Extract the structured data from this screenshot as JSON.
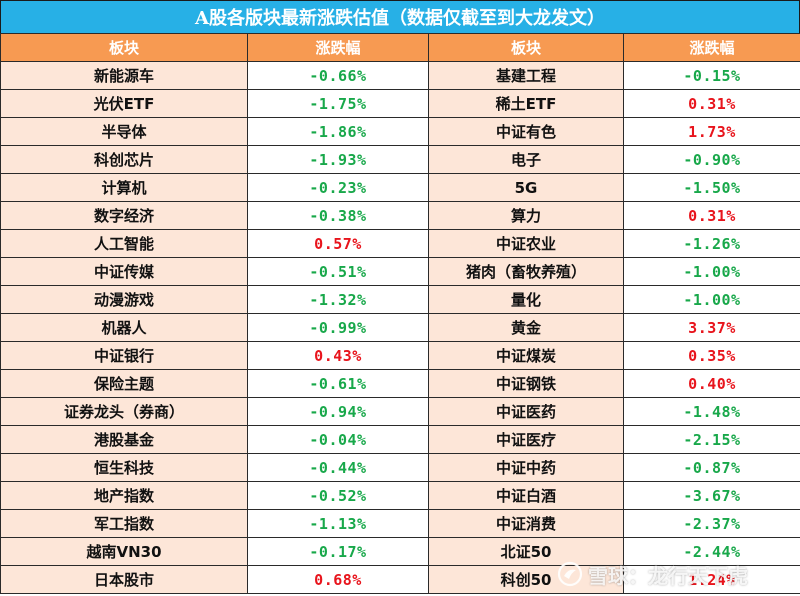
{
  "title": "A股各版块最新涨跌估值（数据仅截至到大龙发文）",
  "headers": [
    "板块",
    "涨跌幅",
    "板块",
    "涨跌幅"
  ],
  "colors": {
    "up": "#e8141c",
    "down": "#18a84a",
    "header_bg": "#f79a52",
    "title_bg": "#27b0e6",
    "name_bg": "#fde6d8"
  },
  "rows": [
    {
      "left_name": "新能源车",
      "left_change": "-0.66%",
      "right_name": "基建工程",
      "right_change": "-0.15%"
    },
    {
      "left_name": "光伏ETF",
      "left_change": "-1.75%",
      "right_name": "稀土ETF",
      "right_change": "0.31%"
    },
    {
      "left_name": "半导体",
      "left_change": "-1.86%",
      "right_name": "中证有色",
      "right_change": "1.73%"
    },
    {
      "left_name": "科创芯片",
      "left_change": "-1.93%",
      "right_name": "电子",
      "right_change": "-0.90%"
    },
    {
      "left_name": "计算机",
      "left_change": "-0.23%",
      "right_name": "5G",
      "right_change": "-1.50%"
    },
    {
      "left_name": "数字经济",
      "left_change": "-0.38%",
      "right_name": "算力",
      "right_change": "0.31%"
    },
    {
      "left_name": "人工智能",
      "left_change": "0.57%",
      "right_name": "中证农业",
      "right_change": "-1.26%"
    },
    {
      "left_name": "中证传媒",
      "left_change": "-0.51%",
      "right_name": "猪肉（畜牧养殖）",
      "right_change": "-1.00%"
    },
    {
      "left_name": "动漫游戏",
      "left_change": "-1.32%",
      "right_name": "量化",
      "right_change": "-1.00%"
    },
    {
      "left_name": "机器人",
      "left_change": "-0.99%",
      "right_name": "黄金",
      "right_change": "3.37%"
    },
    {
      "left_name": "中证银行",
      "left_change": "0.43%",
      "right_name": "中证煤炭",
      "right_change": "0.35%"
    },
    {
      "left_name": "保险主题",
      "left_change": "-0.61%",
      "right_name": "中证钢铁",
      "right_change": "0.40%"
    },
    {
      "left_name": "证券龙头（券商）",
      "left_change": "-0.94%",
      "right_name": "中证医药",
      "right_change": "-1.48%"
    },
    {
      "left_name": "港股基金",
      "left_change": "-0.04%",
      "right_name": "中证医疗",
      "right_change": "-2.15%"
    },
    {
      "left_name": "恒生科技",
      "left_change": "-0.44%",
      "right_name": "中证中药",
      "right_change": "-0.87%"
    },
    {
      "left_name": "地产指数",
      "left_change": "-0.52%",
      "right_name": "中证白酒",
      "right_change": "-3.67%"
    },
    {
      "left_name": "军工指数",
      "left_change": "-1.13%",
      "right_name": "中证消费",
      "right_change": "-2.37%"
    },
    {
      "left_name": "越南VN30",
      "left_change": "-0.17%",
      "right_name": "北证50",
      "right_change": "-2.44%"
    },
    {
      "left_name": "日本股市",
      "left_change": "0.68%",
      "right_name": "科创50",
      "right_change": "1.24%"
    }
  ],
  "watermark": {
    "text": "雪球：龙行天下虎",
    "icon": "snowball-logo-icon"
  }
}
